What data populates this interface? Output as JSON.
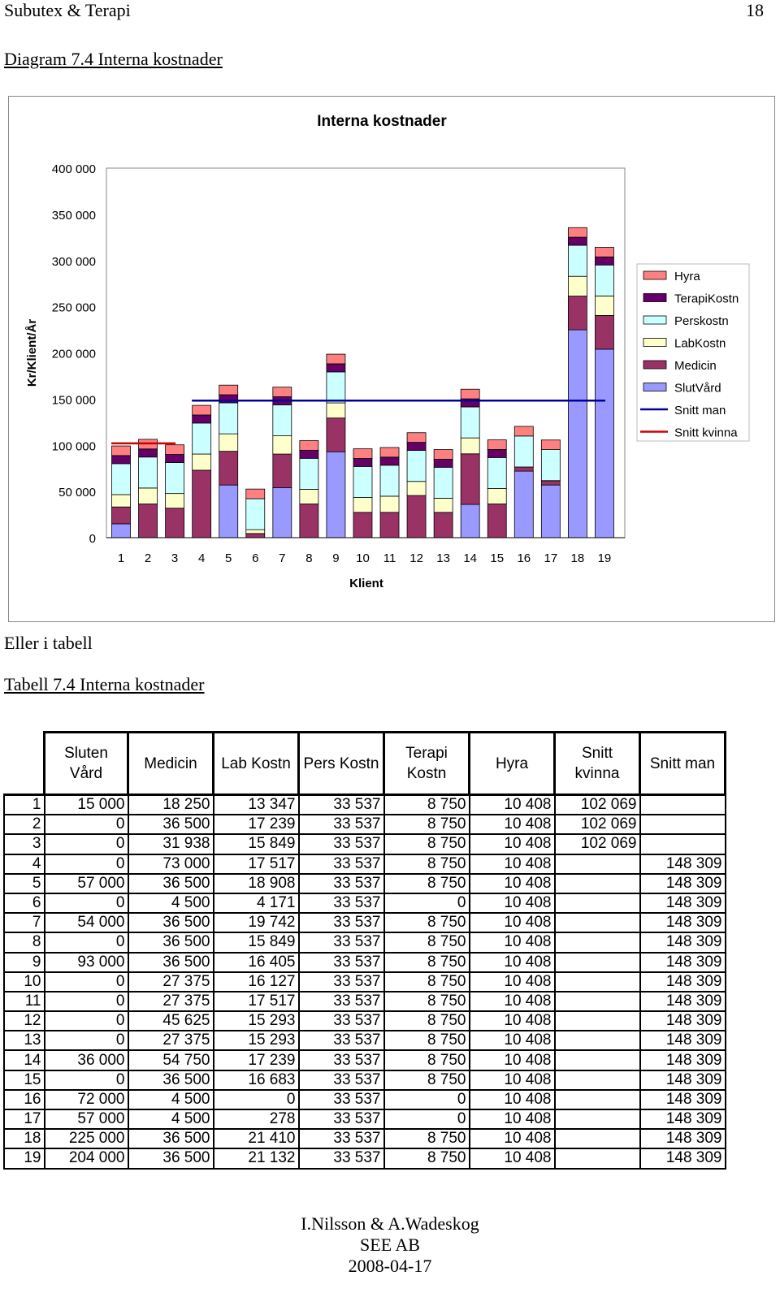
{
  "page_header": {
    "left": "Subutex & Terapi",
    "right": "18"
  },
  "diagram_caption": "Diagram 7.4 Interna kostnader",
  "between_text": "Eller i tabell",
  "table_caption": "Tabell 7.4 Interna kostnader",
  "chart_data": {
    "type": "bar",
    "stacked": true,
    "title": "Interna kostnader",
    "xlabel": "Klient",
    "ylabel": "Kr/Klient/År",
    "ylim": [
      0,
      400000
    ],
    "yticks": [
      "0",
      "50 000",
      "100 000",
      "150 000",
      "200 000",
      "250 000",
      "300 000",
      "350 000",
      "400 000"
    ],
    "categories": [
      "1",
      "2",
      "3",
      "4",
      "5",
      "6",
      "7",
      "8",
      "9",
      "10",
      "11",
      "12",
      "13",
      "14",
      "15",
      "16",
      "17",
      "18",
      "19"
    ],
    "series": [
      {
        "name": "SlutVård",
        "color": "#9999ff",
        "values": [
          15000,
          0,
          0,
          0,
          57000,
          0,
          54000,
          0,
          93000,
          0,
          0,
          0,
          0,
          36000,
          0,
          72000,
          57000,
          225000,
          204000
        ]
      },
      {
        "name": "Medicin",
        "color": "#993366",
        "values": [
          18250,
          36500,
          31938,
          73000,
          36500,
          4500,
          36500,
          36500,
          36500,
          27375,
          27375,
          45625,
          27375,
          54750,
          36500,
          4500,
          4500,
          36500,
          36500
        ]
      },
      {
        "name": "LabKostn",
        "color": "#ffffcc",
        "values": [
          13347,
          17239,
          15849,
          17517,
          18908,
          4171,
          19742,
          15849,
          16405,
          16127,
          17517,
          15293,
          15293,
          17239,
          16683,
          0,
          278,
          21410,
          21132
        ]
      },
      {
        "name": "Perskostn",
        "color": "#ccffff",
        "values": [
          33537,
          33537,
          33537,
          33537,
          33537,
          33537,
          33537,
          33537,
          33537,
          33537,
          33537,
          33537,
          33537,
          33537,
          33537,
          33537,
          33537,
          33537,
          33537
        ]
      },
      {
        "name": "TerapiKostn",
        "color": "#660066",
        "values": [
          8750,
          8750,
          8750,
          8750,
          8750,
          0,
          8750,
          8750,
          8750,
          8750,
          8750,
          8750,
          8750,
          8750,
          8750,
          0,
          0,
          8750,
          8750
        ]
      },
      {
        "name": "Hyra",
        "color": "#ff8080",
        "values": [
          10408,
          10408,
          10408,
          10408,
          10408,
          10408,
          10408,
          10408,
          10408,
          10408,
          10408,
          10408,
          10408,
          10408,
          10408,
          10408,
          10408,
          10408,
          10408
        ]
      }
    ],
    "lines": [
      {
        "name": "Snitt man",
        "color": "#000099",
        "value": 148309,
        "from_category": "4",
        "to_category": "19"
      },
      {
        "name": "Snitt kvinna",
        "color": "#cc0000",
        "value": 102069,
        "from_category": "1",
        "to_category": "3"
      }
    ],
    "legend_order": [
      "Hyra",
      "TerapiKostn",
      "Perskostn",
      "LabKostn",
      "Medicin",
      "SlutVård",
      "Snitt man",
      "Snitt kvinna"
    ],
    "legend_position": "right"
  },
  "table": {
    "headers": [
      "Sluten Vård",
      "Medicin",
      "Lab Kostn",
      "Pers Kostn",
      "Terapi Kostn",
      "Hyra",
      "Snitt kvinna",
      "Snitt man"
    ],
    "rows": [
      [
        "1",
        "15 000",
        "18 250",
        "13 347",
        "33 537",
        "8 750",
        "10 408",
        "102 069",
        ""
      ],
      [
        "2",
        "0",
        "36 500",
        "17 239",
        "33 537",
        "8 750",
        "10 408",
        "102 069",
        ""
      ],
      [
        "3",
        "0",
        "31 938",
        "15 849",
        "33 537",
        "8 750",
        "10 408",
        "102 069",
        ""
      ],
      [
        "4",
        "0",
        "73 000",
        "17 517",
        "33 537",
        "8 750",
        "10 408",
        "",
        "148 309"
      ],
      [
        "5",
        "57 000",
        "36 500",
        "18 908",
        "33 537",
        "8 750",
        "10 408",
        "",
        "148 309"
      ],
      [
        "6",
        "0",
        "4 500",
        "4 171",
        "33 537",
        "0",
        "10 408",
        "",
        "148 309"
      ],
      [
        "7",
        "54 000",
        "36 500",
        "19 742",
        "33 537",
        "8 750",
        "10 408",
        "",
        "148 309"
      ],
      [
        "8",
        "0",
        "36 500",
        "15 849",
        "33 537",
        "8 750",
        "10 408",
        "",
        "148 309"
      ],
      [
        "9",
        "93 000",
        "36 500",
        "16 405",
        "33 537",
        "8 750",
        "10 408",
        "",
        "148 309"
      ],
      [
        "10",
        "0",
        "27 375",
        "16 127",
        "33 537",
        "8 750",
        "10 408",
        "",
        "148 309"
      ],
      [
        "11",
        "0",
        "27 375",
        "17 517",
        "33 537",
        "8 750",
        "10 408",
        "",
        "148 309"
      ],
      [
        "12",
        "0",
        "45 625",
        "15 293",
        "33 537",
        "8 750",
        "10 408",
        "",
        "148 309"
      ],
      [
        "13",
        "0",
        "27 375",
        "15 293",
        "33 537",
        "8 750",
        "10 408",
        "",
        "148 309"
      ],
      [
        "14",
        "36 000",
        "54 750",
        "17 239",
        "33 537",
        "8 750",
        "10 408",
        "",
        "148 309"
      ],
      [
        "15",
        "0",
        "36 500",
        "16 683",
        "33 537",
        "8 750",
        "10 408",
        "",
        "148 309"
      ],
      [
        "16",
        "72 000",
        "4 500",
        "0",
        "33 537",
        "0",
        "10 408",
        "",
        "148 309"
      ],
      [
        "17",
        "57 000",
        "4 500",
        "278",
        "33 537",
        "0",
        "10 408",
        "",
        "148 309"
      ],
      [
        "18",
        "225 000",
        "36 500",
        "21 410",
        "33 537",
        "8 750",
        "10 408",
        "",
        "148 309"
      ],
      [
        "19",
        "204 000",
        "36 500",
        "21 132",
        "33 537",
        "8 750",
        "10 408",
        "",
        "148 309"
      ]
    ]
  },
  "footer": {
    "line1": "I.Nilsson & A.Wadeskog",
    "line2": "SEE AB",
    "line3": "2008-04-17"
  }
}
